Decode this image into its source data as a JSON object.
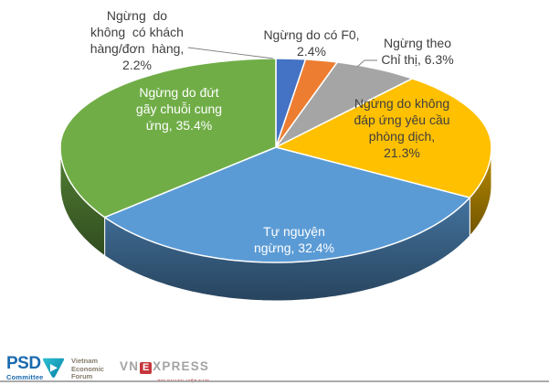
{
  "chart_data": {
    "type": "pie",
    "style": "3d",
    "title": "",
    "unit": "%",
    "direction": "clockwise",
    "start_angle_deg": 0,
    "categories": [
      "Ngừng do không có khách hàng/đơn hàng",
      "Ngừng do có F0",
      "Ngừng theo Chỉ thị",
      "Ngừng do không đáp ứng yêu cầu phòng dịch",
      "Tự nguyện ngừng",
      "Ngừng do đứt gãy chuỗi cung ứng"
    ],
    "values": [
      2.2,
      2.4,
      6.3,
      21.3,
      32.4,
      35.4
    ],
    "colors": [
      "#4472C4",
      "#ED7D31",
      "#A5A5A5",
      "#FFC000",
      "#5B9BD5",
      "#70AD47"
    ],
    "labels": {
      "no_customer": [
        "Ngừng  do",
        "không  có khách",
        "hàng/đơn  hàng,",
        "2.2%"
      ],
      "f0": [
        "Ngừng do có F0,",
        "2.4%"
      ],
      "directive": [
        "Ngừng theo",
        "Chỉ thị, 6.3%"
      ],
      "quarantine": [
        "Ngừng do không",
        "đáp ứng yêu cầu",
        "phòng dịch,",
        "21.3%"
      ],
      "voluntary": [
        "Tự nguyện",
        "ngừng, 32.4%"
      ],
      "supply_chain": [
        "Ngừng do đứt",
        "gãy chuỗi cung",
        "ứng, 35.4%"
      ]
    }
  },
  "footer": {
    "psd_logo": {
      "name": "PSD",
      "subtitle": "Committee"
    },
    "vef_logo": {
      "lines": [
        "Vietnam",
        "Economic",
        "Forum"
      ]
    },
    "vnexpress_logo": {
      "prefix": "VN",
      "e": "E",
      "suffix": "XPRESS",
      "tagline": "TIN NHANH VIỆT NAM"
    }
  }
}
